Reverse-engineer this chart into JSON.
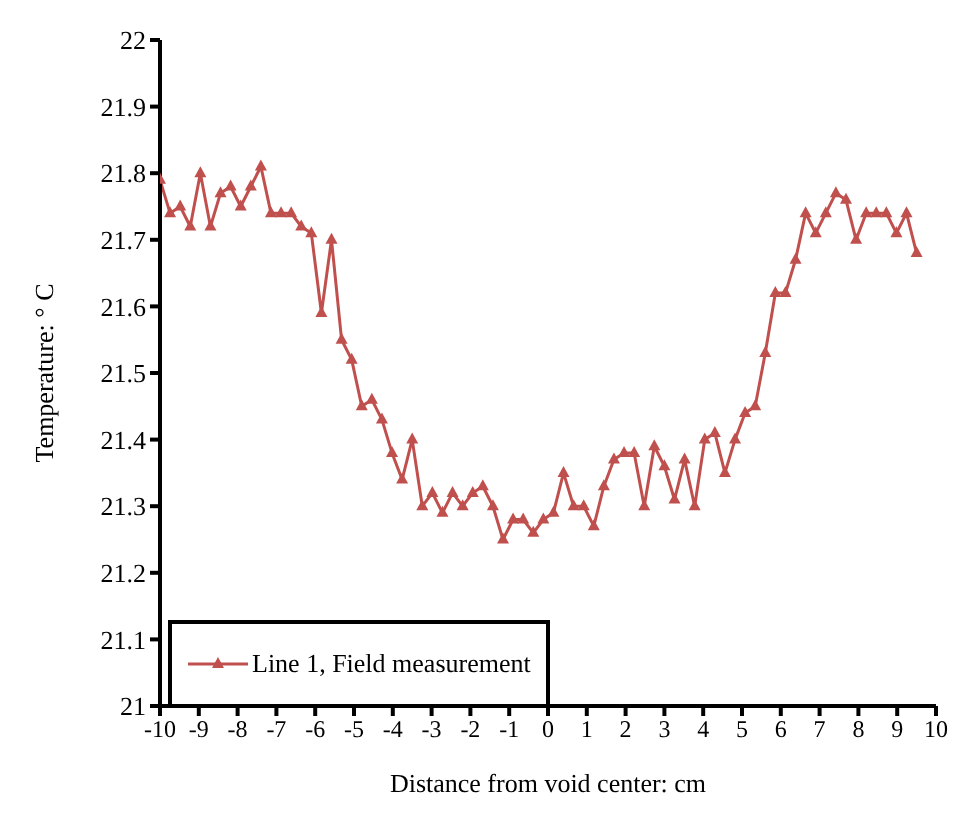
{
  "chart_data": {
    "type": "line",
    "xlabel": "Distance from void center: cm",
    "ylabel": "Temperature: ° C",
    "x": [
      -10,
      -9.74,
      -9.48,
      -9.22,
      -8.96,
      -8.7,
      -8.44,
      -8.18,
      -7.92,
      -7.66,
      -7.4,
      -7.14,
      -6.88,
      -6.62,
      -6.36,
      -6.1,
      -5.84,
      -5.58,
      -5.32,
      -5.06,
      -4.8,
      -4.54,
      -4.28,
      -4.02,
      -3.76,
      -3.5,
      -3.24,
      -2.98,
      -2.72,
      -2.46,
      -2.2,
      -1.94,
      -1.68,
      -1.42,
      -1.16,
      -0.9,
      -0.64,
      -0.38,
      -0.12,
      0.14,
      0.4,
      0.66,
      0.92,
      1.18,
      1.44,
      1.7,
      1.96,
      2.22,
      2.48,
      2.74,
      3.0,
      3.26,
      3.52,
      3.78,
      4.04,
      4.3,
      4.56,
      4.82,
      5.08,
      5.34,
      5.6,
      5.86,
      6.12,
      6.38,
      6.64,
      6.9,
      7.16,
      7.42,
      7.68,
      7.94,
      8.2,
      8.46,
      8.72,
      8.98,
      9.24,
      9.5
    ],
    "series": [
      {
        "name": "Line 1, Field measurement",
        "color": "#c0504d",
        "values": [
          21.79,
          21.74,
          21.75,
          21.72,
          21.8,
          21.72,
          21.77,
          21.78,
          21.75,
          21.78,
          21.81,
          21.74,
          21.74,
          21.74,
          21.72,
          21.71,
          21.59,
          21.7,
          21.55,
          21.52,
          21.45,
          21.46,
          21.43,
          21.38,
          21.34,
          21.4,
          21.3,
          21.32,
          21.29,
          21.32,
          21.3,
          21.32,
          21.33,
          21.3,
          21.25,
          21.28,
          21.28,
          21.26,
          21.28,
          21.29,
          21.35,
          21.3,
          21.3,
          21.27,
          21.33,
          21.37,
          21.38,
          21.38,
          21.3,
          21.39,
          21.36,
          21.31,
          21.37,
          21.3,
          21.4,
          21.41,
          21.35,
          21.4,
          21.44,
          21.45,
          21.53,
          21.62,
          21.62,
          21.67,
          21.74,
          21.71,
          21.74,
          21.77,
          21.76,
          21.7,
          21.74,
          21.74,
          21.74,
          21.71,
          21.74,
          21.68
        ]
      }
    ],
    "xlim": [
      -10,
      10
    ],
    "xticks": [
      -10,
      -9,
      -8,
      -7,
      -6,
      -5,
      -4,
      -3,
      -2,
      -1,
      0,
      1,
      2,
      3,
      4,
      5,
      6,
      7,
      8,
      9,
      10
    ],
    "ylim": [
      21,
      22
    ],
    "yticks": [
      21,
      21.1,
      21.2,
      21.3,
      21.4,
      21.5,
      21.6,
      21.7,
      21.8,
      21.9,
      22
    ],
    "grid": false,
    "legend": "bottom left",
    "marker": "triangle",
    "line_style": "solid"
  }
}
